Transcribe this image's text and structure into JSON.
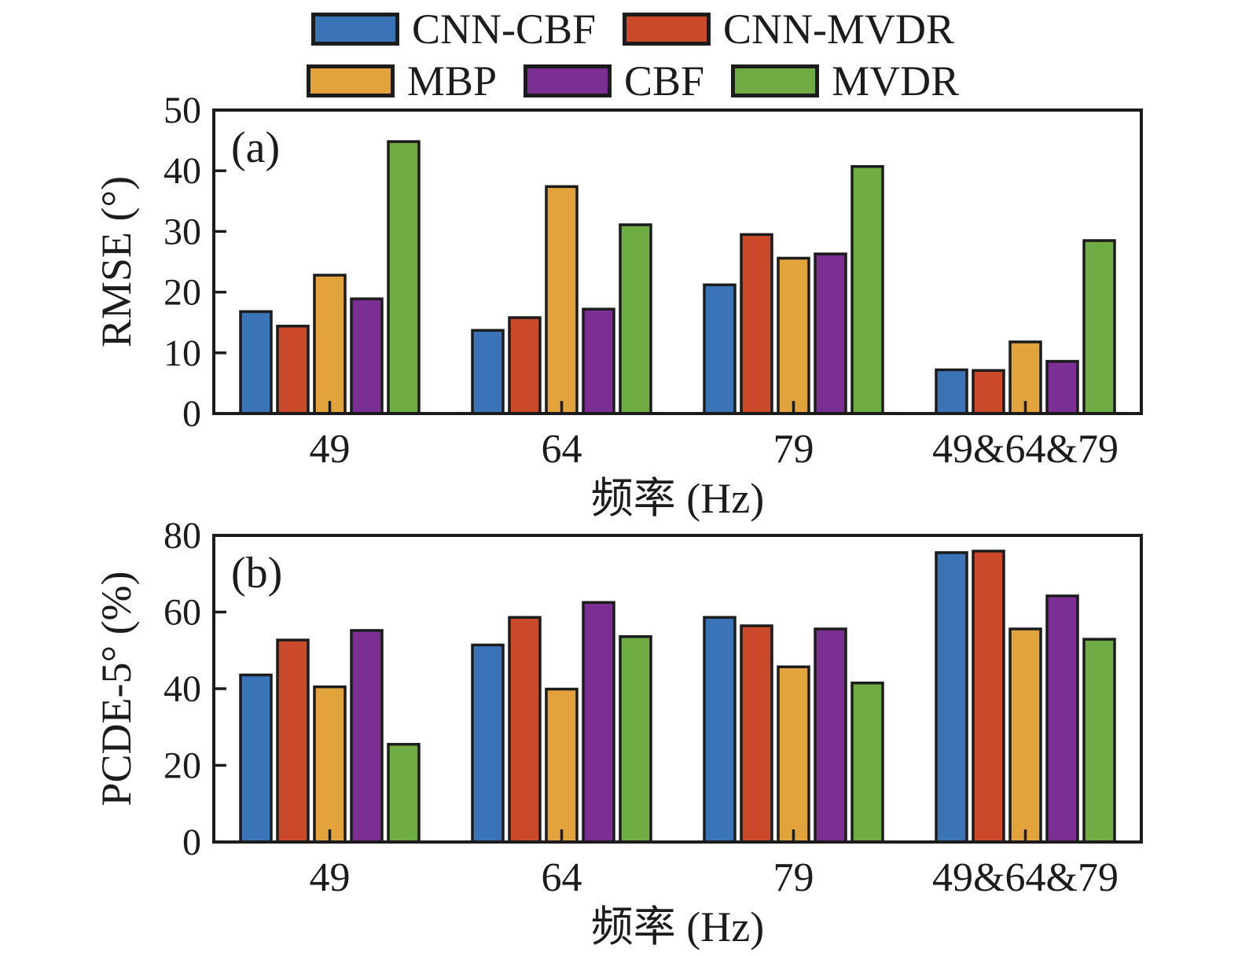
{
  "figure": {
    "background": "#ffffff",
    "ink": "#1c1c1c"
  },
  "legend": {
    "rows": [
      [
        {
          "label": "CNN-CBF",
          "color": "#3B73B7"
        },
        {
          "label": "CNN-MVDR",
          "color": "#C9492A"
        }
      ],
      [
        {
          "label": "MBP",
          "color": "#E2A33C"
        },
        {
          "label": "CBF",
          "color": "#7B2F92"
        },
        {
          "label": "MVDR",
          "color": "#6FAC44"
        }
      ]
    ]
  },
  "chart_data": [
    {
      "type": "bar",
      "panel_label": "(a)",
      "title": "",
      "xlabel": "频率 (Hz)",
      "ylabel": "RMSE (°)",
      "categories": [
        "49",
        "64",
        "79",
        "49&64&79"
      ],
      "series": [
        {
          "name": "CNN-CBF",
          "color": "#3B73B7",
          "values": [
            16.8,
            13.7,
            21.2,
            7.2
          ]
        },
        {
          "name": "CNN-MVDR",
          "color": "#C9492A",
          "values": [
            14.4,
            15.8,
            29.5,
            7.1
          ]
        },
        {
          "name": "MBP",
          "color": "#E2A33C",
          "values": [
            22.8,
            37.4,
            25.6,
            11.8
          ]
        },
        {
          "name": "CBF",
          "color": "#7B2F92",
          "values": [
            18.9,
            17.2,
            26.3,
            8.6
          ]
        },
        {
          "name": "MVDR",
          "color": "#6FAC44",
          "values": [
            44.8,
            31.1,
            40.7,
            28.5
          ]
        }
      ],
      "ylim": [
        0,
        50
      ],
      "yticks": [
        0,
        10,
        20,
        30,
        40,
        50
      ],
      "grid": false,
      "legend_position": "top"
    },
    {
      "type": "bar",
      "panel_label": "(b)",
      "title": "",
      "xlabel": "频率 (Hz)",
      "ylabel": "PCDE-5° (%)",
      "categories": [
        "49",
        "64",
        "79",
        "49&64&79"
      ],
      "series": [
        {
          "name": "CNN-CBF",
          "color": "#3B73B7",
          "values": [
            43.6,
            51.4,
            58.6,
            75.5
          ]
        },
        {
          "name": "CNN-MVDR",
          "color": "#C9492A",
          "values": [
            52.7,
            58.6,
            56.4,
            75.9
          ]
        },
        {
          "name": "MBP",
          "color": "#E2A33C",
          "values": [
            40.5,
            39.9,
            45.7,
            55.6
          ]
        },
        {
          "name": "CBF",
          "color": "#7B2F92",
          "values": [
            55.2,
            62.5,
            55.6,
            64.2
          ]
        },
        {
          "name": "MVDR",
          "color": "#6FAC44",
          "values": [
            25.5,
            53.6,
            41.5,
            52.9
          ]
        }
      ],
      "ylim": [
        0,
        80
      ],
      "yticks": [
        0,
        20,
        40,
        60,
        80
      ],
      "grid": false,
      "legend_position": "top"
    }
  ]
}
